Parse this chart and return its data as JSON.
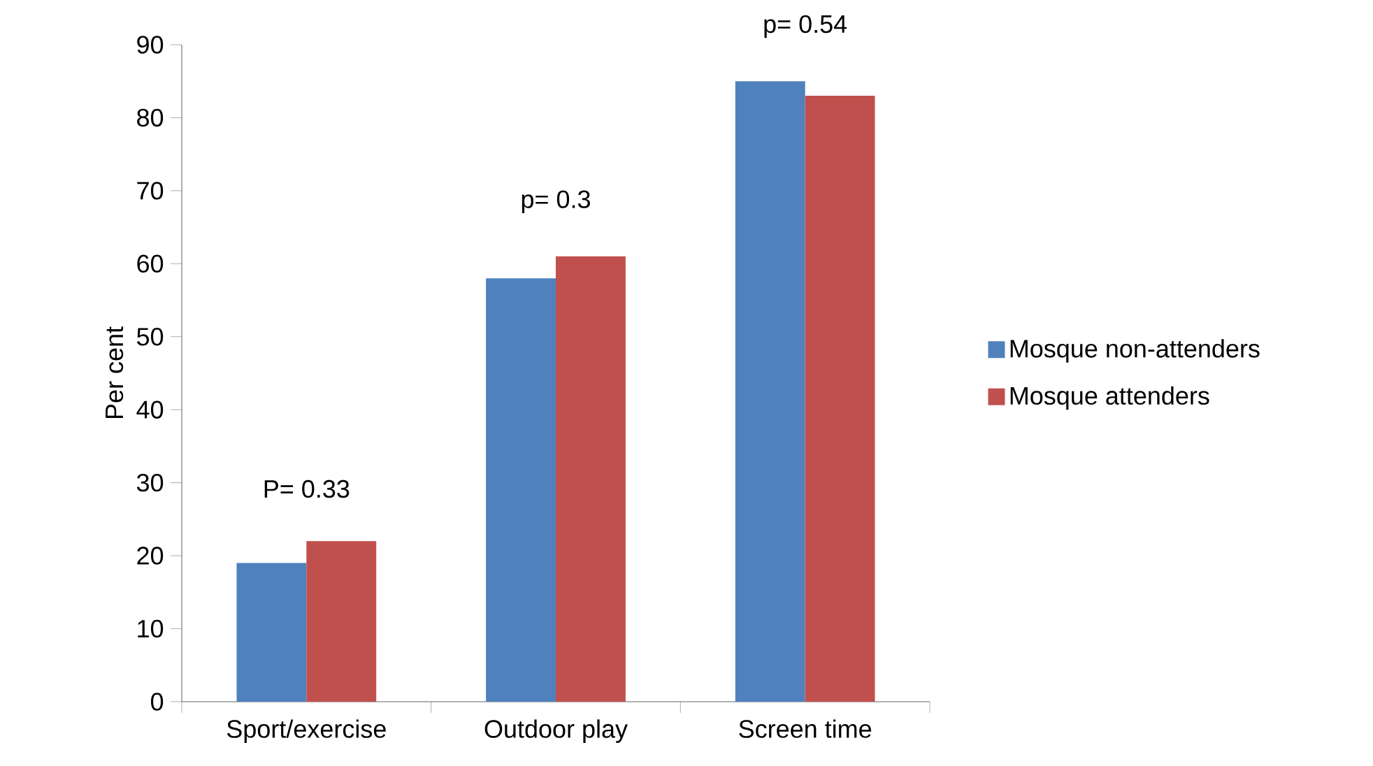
{
  "chart_data": {
    "type": "bar",
    "ylabel": "Per cent",
    "categories": [
      "Sport/exercise",
      "Outdoor play",
      "Screen time"
    ],
    "series": [
      {
        "name": "Mosque non-attenders",
        "color": "#4f81bd",
        "values": [
          19,
          58,
          85
        ]
      },
      {
        "name": "Mosque attenders",
        "color": "#c0504d",
        "values": [
          22,
          61,
          83
        ]
      }
    ],
    "ylim": [
      0,
      90
    ],
    "yticks": [
      0,
      10,
      20,
      30,
      40,
      50,
      60,
      70,
      80,
      90
    ],
    "legend": "right",
    "annotations": [
      "P= 0.33",
      "p= 0.3",
      "p= 0.54"
    ]
  }
}
